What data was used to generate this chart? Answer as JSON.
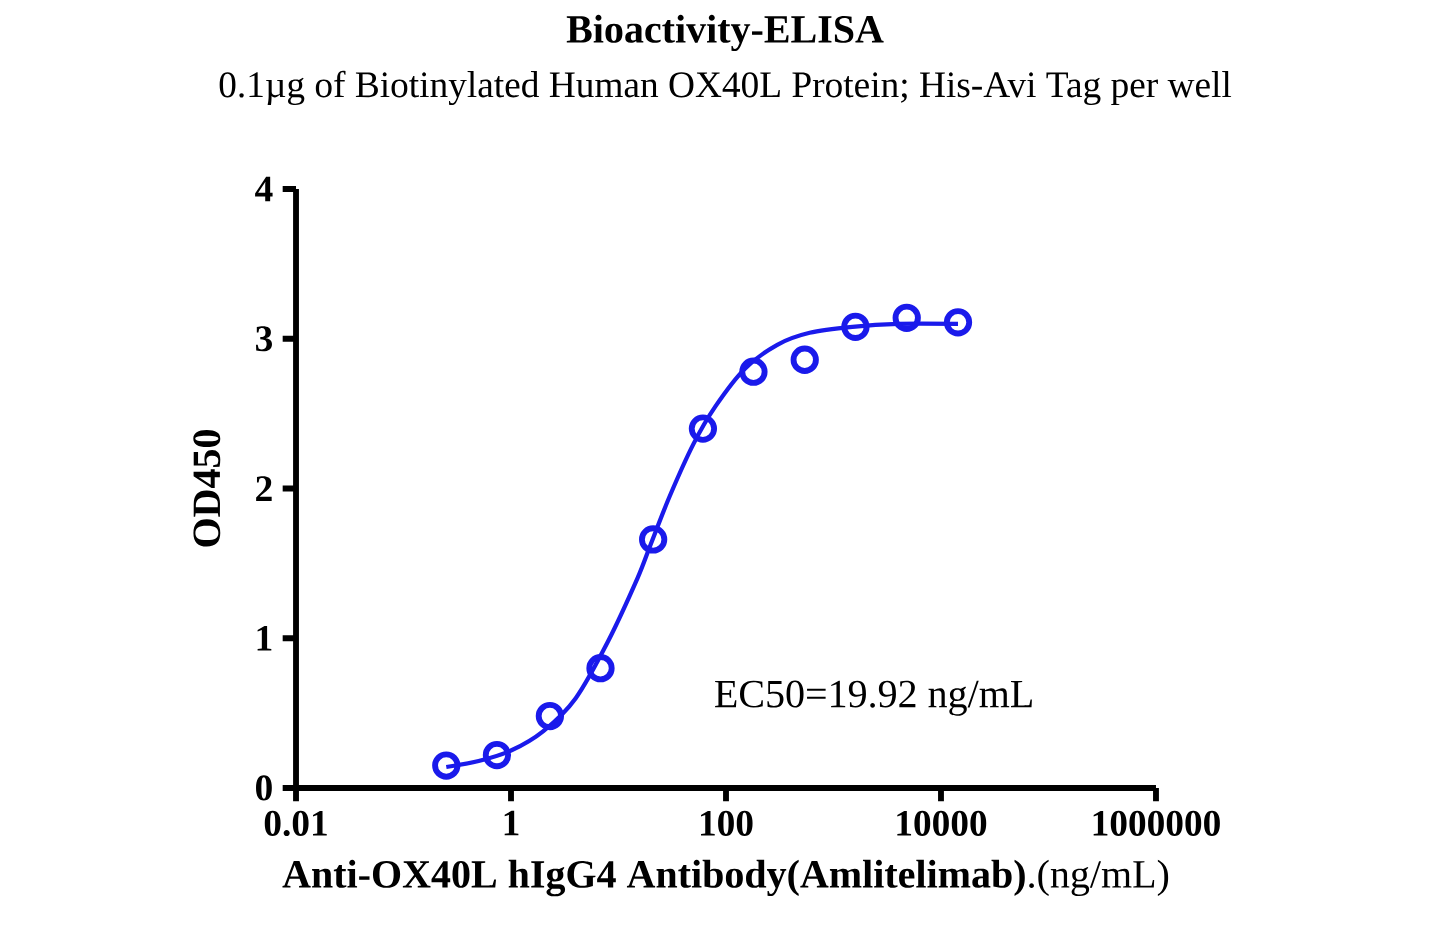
{
  "chart_data": {
    "type": "scatter",
    "title": "Bioactivity-ELISA",
    "subtitle": "0.1µg of Biotinylated Human OX40L Protein; His-Avi Tag  per well",
    "xlabel": "**Anti-OX40L hIgG4 Antibody(Amlitelimab)**.(ng/mL)",
    "ylabel": "OD450",
    "annotations": [
      "EC50=19.92 ng/mL"
    ],
    "log": "x",
    "xlim": [
      0.01,
      1000000
    ],
    "xticks": [
      0.01,
      1,
      100,
      10000,
      1000000
    ],
    "ylim": [
      0,
      4
    ],
    "yticks": [
      0,
      1,
      2,
      3,
      4
    ],
    "marker": "circle",
    "series": [
      {
        "color": "#1a1aeb",
        "x": [
          0.25,
          0.74,
          2.3,
          6.8,
          21,
          61,
          180,
          540,
          1600,
          4800,
          14400
        ],
        "values": [
          0.15,
          0.22,
          0.48,
          0.8,
          1.66,
          2.4,
          2.78,
          2.86,
          3.08,
          3.14,
          3.11
        ]
      },
      {
        "type": "line",
        "marker": "none",
        "color": "#1a1aeb",
        "x": [
          0.25,
          0.5,
          1,
          2,
          4,
          8,
          15,
          20,
          30,
          50,
          80,
          150,
          300,
          600,
          1500,
          4000,
          14400
        ],
        "values": [
          0.14,
          0.18,
          0.25,
          0.38,
          0.6,
          0.98,
          1.4,
          1.63,
          1.95,
          2.3,
          2.55,
          2.8,
          2.96,
          3.04,
          3.08,
          3.1,
          3.1
        ]
      }
    ]
  }
}
